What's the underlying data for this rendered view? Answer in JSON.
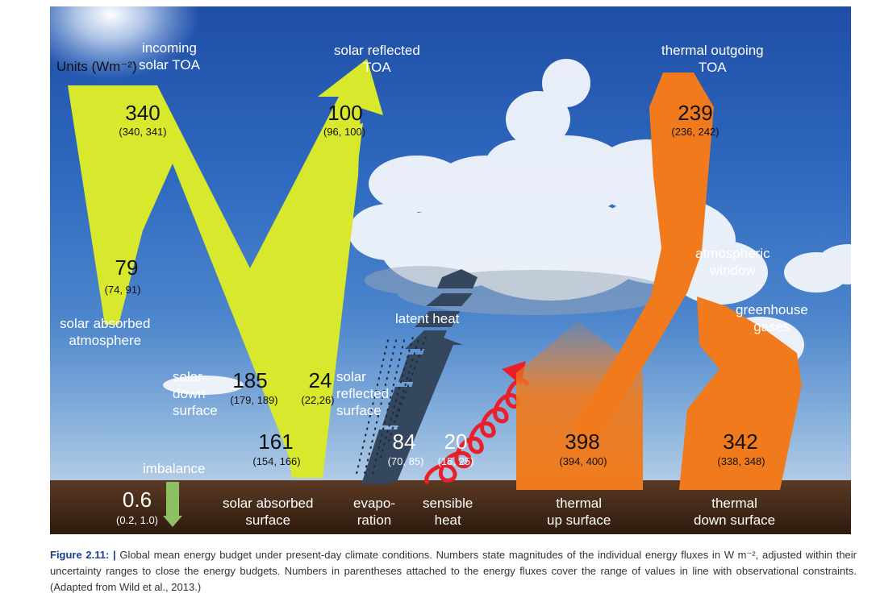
{
  "units": "Units (Wm⁻²)",
  "labels": {
    "incoming": "incoming\nsolar TOA",
    "solar_reflected_toa": "solar reflected\nTOA",
    "thermal_outgoing_toa": "thermal outgoing\nTOA",
    "atmospheric_window": "atmospheric\nwindow",
    "greenhouse_gases": "greenhouse\ngases",
    "solar_absorbed_atmosphere": "solar absorbed\natmosphere",
    "latent_heat": "latent heat",
    "solar_down_surface": "solar\ndown\nsurface",
    "solar_reflected_surface": "solar\nreflected\nsurface",
    "imbalance": "imbalance",
    "solar_absorbed_surface": "solar absorbed\nsurface",
    "evaporation": "evapo-\nration",
    "sensible_heat": "sensible\nheat",
    "thermal_up_surface": "thermal\nup surface",
    "thermal_down_surface": "thermal\ndown surface"
  },
  "fluxes": {
    "incoming_solar_toa": {
      "value": "340",
      "range": "(340, 341)"
    },
    "solar_reflected_toa": {
      "value": "100",
      "range": "(96, 100)"
    },
    "thermal_outgoing_toa": {
      "value": "239",
      "range": "(236, 242)"
    },
    "solar_absorbed_atmosphere": {
      "value": "79",
      "range": "(74, 91)"
    },
    "solar_down_surface": {
      "value": "185",
      "range": "(179, 189)"
    },
    "solar_reflected_surface": {
      "value": "24",
      "range": "(22,26)"
    },
    "solar_absorbed_surface": {
      "value": "161",
      "range": "(154, 166)"
    },
    "evaporation": {
      "value": "84",
      "range": "(70, 85)"
    },
    "sensible_heat": {
      "value": "20",
      "range": "(15, 25)"
    },
    "thermal_up_surface": {
      "value": "398",
      "range": "(394, 400)"
    },
    "thermal_down_surface": {
      "value": "342",
      "range": "(338, 348)"
    },
    "imbalance": {
      "value": "0.6",
      "range": "(0.2, 1.0)"
    }
  },
  "colors": {
    "solar": "#d8e82c",
    "thermal": "#f07a1c",
    "latent": "#34475f",
    "sensible": "#e8202a",
    "imbalance": "#8cc063",
    "caption_label": "#1a3f8f"
  },
  "caption": {
    "label": "Figure 2.11: |",
    "text": "Global mean energy budget under present-day climate conditions. Numbers state magnitudes of the individual energy fluxes in W m⁻², adjusted within their uncertainty ranges to close the energy budgets. Numbers in parentheses attached to the energy fluxes cover the range of values in line with observational constraints. (Adapted from Wild et al., 2013.)"
  }
}
